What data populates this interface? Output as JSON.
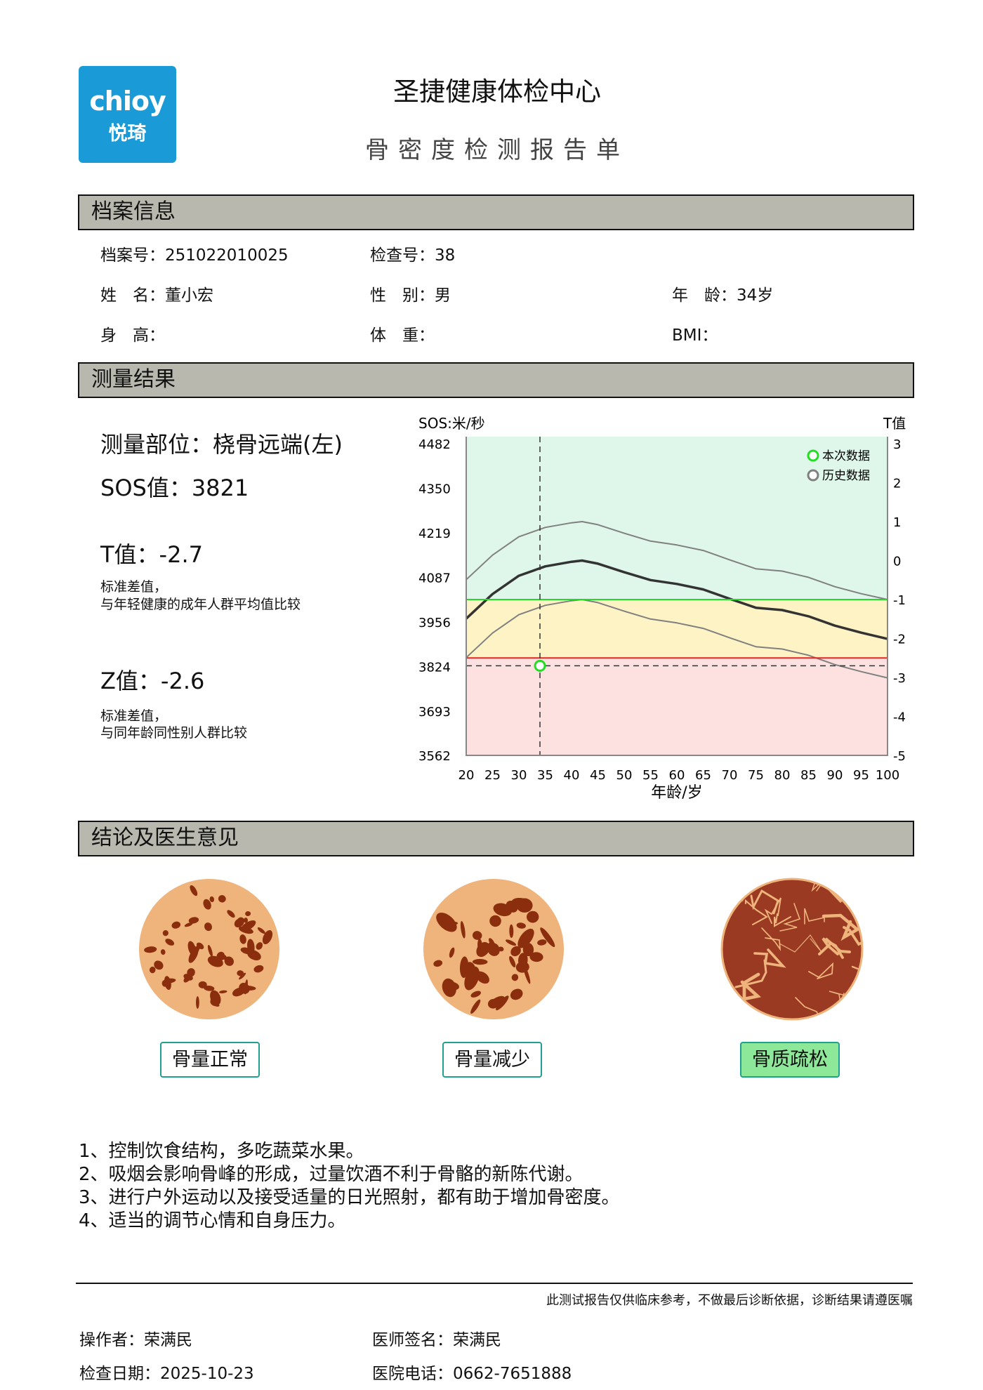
{
  "header": {
    "logo_en": "chioy",
    "logo_cn": "悦琦",
    "title": "圣捷健康体检中心",
    "subtitle": "骨密度检测报告单"
  },
  "profile": {
    "section_title": "档案信息",
    "file_no": "档案号：251022010025",
    "exam_no": "检查号：38",
    "name": "姓　名：董小宏",
    "gender": "性　别：男",
    "age": "年　龄：34岁",
    "height": "身　高：",
    "weight": "体　重：",
    "bmi": "BMI："
  },
  "results": {
    "section_title": "测量结果",
    "site": "测量部位：桡骨远端(左)",
    "sos": "SOS值：3821",
    "t_value": "T值：-2.7",
    "t_desc1": "标准差值，",
    "t_desc2": "与年轻健康的成年人群平均值比较",
    "z_value": "Z值：-2.6",
    "z_desc1": "标准差值，",
    "z_desc2": "与同年龄同性别人群比较"
  },
  "chart_data": {
    "type": "line",
    "ylabel_left": "SOS:米/秒",
    "ylabel_right": "T值",
    "xlabel": "年龄/岁",
    "x_ticks": [
      20,
      25,
      30,
      35,
      40,
      45,
      50,
      55,
      60,
      65,
      70,
      75,
      80,
      85,
      90,
      95,
      100
    ],
    "y_left_ticks": [
      4482,
      4350,
      4219,
      4087,
      3956,
      3824,
      3693,
      3562
    ],
    "y_right_ticks": [
      3,
      2,
      1,
      0,
      -1,
      -2,
      -3,
      -4,
      -5
    ],
    "ylim_t": [
      -5,
      3
    ],
    "ylim_sos": [
      3562,
      4482
    ],
    "thresholds": [
      {
        "t": -1,
        "color": "#22dd22"
      },
      {
        "t": -2.5,
        "color": "#ee2222"
      }
    ],
    "bands": {
      "normal": "#dff6ea",
      "osteopenia": "#fdf3c5",
      "osteoporosis": "#fde0e0"
    },
    "series": [
      {
        "role": "upper",
        "color": "#808080",
        "ages": [
          20,
          25,
          30,
          35,
          40,
          42,
          45,
          50,
          55,
          60,
          65,
          70,
          75,
          80,
          85,
          90,
          95,
          100
        ],
        "t": [
          -0.49,
          0.14,
          0.61,
          0.85,
          0.97,
          1.0,
          0.92,
          0.7,
          0.5,
          0.4,
          0.26,
          0.02,
          -0.21,
          -0.27,
          -0.43,
          -0.67,
          -0.85,
          -1.0
        ]
      },
      {
        "role": "mean",
        "color": "#333333",
        "ages": [
          20,
          25,
          30,
          35,
          40,
          42,
          45,
          50,
          55,
          60,
          65,
          70,
          75,
          80,
          85,
          90,
          95,
          100
        ],
        "t": [
          -1.49,
          -0.86,
          -0.39,
          -0.15,
          -0.03,
          0.0,
          -0.08,
          -0.3,
          -0.5,
          -0.6,
          -0.74,
          -0.98,
          -1.21,
          -1.27,
          -1.43,
          -1.67,
          -1.85,
          -2.01
        ]
      },
      {
        "role": "lower",
        "color": "#808080",
        "ages": [
          20,
          25,
          30,
          35,
          40,
          42,
          45,
          50,
          55,
          60,
          65,
          70,
          75,
          80,
          85,
          90,
          95,
          100
        ],
        "t": [
          -2.49,
          -1.86,
          -1.39,
          -1.15,
          -1.03,
          -1.0,
          -1.08,
          -1.3,
          -1.5,
          -1.6,
          -1.74,
          -1.98,
          -2.21,
          -2.27,
          -2.43,
          -2.67,
          -2.85,
          -3.01
        ]
      }
    ],
    "current_point": {
      "age": 34,
      "sos": 3821,
      "t": -2.7,
      "color": "#22dd22"
    },
    "legend": [
      {
        "label": "本次数据",
        "color": "#22dd22"
      },
      {
        "label": "历史数据",
        "color": "#808080"
      }
    ],
    "legend_position": "top-right"
  },
  "conclusion": {
    "section_title": "结论及医生意见",
    "categories": [
      {
        "label": "骨量正常",
        "active": false
      },
      {
        "label": "骨量减少",
        "active": false
      },
      {
        "label": "骨质疏松",
        "active": true
      }
    ],
    "advice": [
      "1、控制饮食结构，多吃蔬菜水果。",
      "2、吸烟会影响骨峰的形成，过量饮酒不利于骨骼的新陈代谢。",
      "3、进行户外运动以及接受适量的日光照射，都有助于增加骨密度。",
      "4、适当的调节心情和自身压力。"
    ]
  },
  "footer": {
    "disclaimer": "此测试报告仅供临床参考，不做最后诊断依据，诊断结果请遵医嘱",
    "operator": "操作者：荣满民",
    "doctor": "医师签名：荣满民",
    "date": "检查日期：2025-10-23",
    "phone": "医院电话：0662-7651888"
  }
}
